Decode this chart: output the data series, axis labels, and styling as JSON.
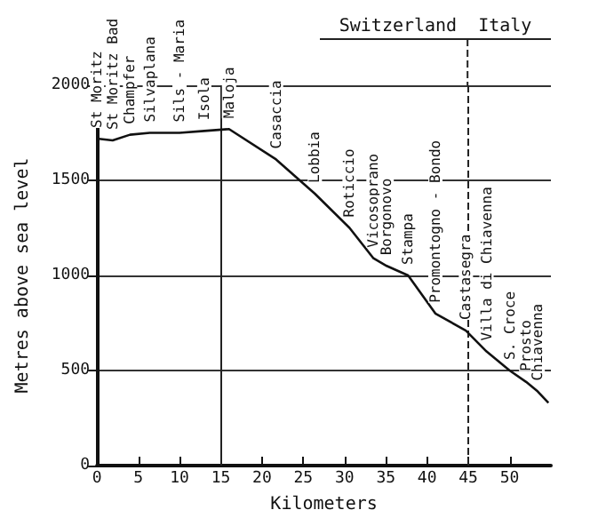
{
  "chart_data": {
    "type": "line",
    "xlabel": "Kilometers",
    "ylabel": "Metres above sea level",
    "x": [
      0,
      1.9,
      4,
      6.4,
      10,
      13,
      16,
      21.7,
      26.4,
      30.6,
      33.5,
      35.1,
      37.7,
      41,
      44.7,
      47.2,
      50,
      52,
      53.4,
      54.7
    ],
    "series": [
      {
        "color": "#111111",
        "values": [
          1720,
          1710,
          1740,
          1750,
          1750,
          1760,
          1770,
          1610,
          1430,
          1250,
          1090,
          1050,
          1000,
          800,
          710,
          600,
          500,
          440,
          390,
          330
        ],
        "value_labels": [
          "St Moritz",
          "St Moritz Bad",
          "Champfer",
          "Silvaplana",
          "Sils - Maria",
          "Isola",
          "Maloja",
          "Casaccia",
          "Lobbia",
          "Roticcio",
          "Vicosoprano",
          "Borgonovo",
          "Stampa",
          "Promontogno - Bondo",
          "Castasegra",
          "Villa di Chiavenna",
          "S. Croce",
          "Prosto",
          "Chiavenna",
          null
        ]
      }
    ],
    "xlim": [
      0,
      55
    ],
    "xticks": [
      0,
      5,
      10,
      15,
      20,
      25,
      30,
      35,
      40,
      45,
      50
    ],
    "ylim": [
      0,
      2000
    ],
    "yticks": [
      0,
      500,
      1000,
      1500,
      2000
    ],
    "grid": "y",
    "marker": "none",
    "line_style": "solid",
    "ref_lines": [
      {
        "axis": "x",
        "value": 15,
        "line_style": "solid"
      },
      {
        "axis": "x",
        "value": 45,
        "line_style": "dashed"
      }
    ],
    "annotations": [
      "Switzerland",
      "Italy"
    ]
  }
}
